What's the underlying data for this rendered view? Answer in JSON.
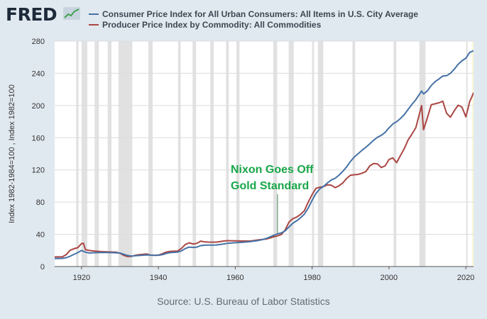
{
  "header": {
    "logo_text": "FRED",
    "logo_icon": "trend-line-icon"
  },
  "legend": [
    {
      "label": "Consumer Price Index for All Urban Consumers: All Items in U.S. City Average",
      "color": "#4572a7"
    },
    {
      "label": "Producer Price Index by Commodity: All Commodities",
      "color": "#aa4643"
    }
  ],
  "source": "Source: U.S. Bureau of Labor Statistics",
  "annotation": {
    "lines": [
      "Nixon Goes Off",
      "Gold Standard"
    ],
    "year": 1971,
    "value": 41,
    "color": "#19a74a"
  },
  "chart_data": {
    "type": "line",
    "title": "",
    "xlabel": "",
    "ylabel": "Index 1982-1984=100 , Index 1982=100",
    "xlim": [
      1913,
      2022
    ],
    "ylim": [
      0,
      280
    ],
    "x_ticks": [
      1920,
      1940,
      1960,
      1980,
      2000,
      2020
    ],
    "y_ticks": [
      0,
      40,
      80,
      120,
      160,
      200,
      240,
      280
    ],
    "recessions": [
      [
        1918.6,
        1919.2
      ],
      [
        1920.0,
        1921.5
      ],
      [
        1923.4,
        1924.5
      ],
      [
        1926.8,
        1927.8
      ],
      [
        1929.6,
        1933.2
      ],
      [
        1937.4,
        1938.5
      ],
      [
        1945.1,
        1945.8
      ],
      [
        1948.9,
        1949.8
      ],
      [
        1953.5,
        1954.4
      ],
      [
        1957.6,
        1958.3
      ],
      [
        1960.3,
        1961.1
      ],
      [
        1969.9,
        1970.9
      ],
      [
        1973.9,
        1975.2
      ],
      [
        1980.0,
        1980.5
      ],
      [
        1981.5,
        1982.9
      ],
      [
        1990.5,
        1991.2
      ],
      [
        2001.2,
        2001.9
      ],
      [
        2007.9,
        2009.5
      ],
      [
        2020.1,
        2020.4
      ]
    ],
    "series": [
      {
        "name": "Consumer Price Index for All Urban Consumers: All Items in U.S. City Average",
        "color": "#4572a7",
        "points": [
          [
            1913,
            9.9
          ],
          [
            1915,
            10.1
          ],
          [
            1916,
            10.9
          ],
          [
            1917,
            12.8
          ],
          [
            1918,
            15.1
          ],
          [
            1919,
            17.3
          ],
          [
            1920,
            20.0
          ],
          [
            1921,
            17.9
          ],
          [
            1922,
            16.8
          ],
          [
            1923,
            17.1
          ],
          [
            1925,
            17.5
          ],
          [
            1927,
            17.4
          ],
          [
            1929,
            17.1
          ],
          [
            1930,
            16.7
          ],
          [
            1931,
            15.2
          ],
          [
            1932,
            13.7
          ],
          [
            1933,
            13.0
          ],
          [
            1934,
            13.4
          ],
          [
            1935,
            13.7
          ],
          [
            1937,
            14.4
          ],
          [
            1938,
            14.1
          ],
          [
            1939,
            13.9
          ],
          [
            1940,
            14.0
          ],
          [
            1941,
            14.7
          ],
          [
            1942,
            16.3
          ],
          [
            1943,
            17.3
          ],
          [
            1945,
            18.0
          ],
          [
            1946,
            19.5
          ],
          [
            1947,
            22.3
          ],
          [
            1948,
            24.1
          ],
          [
            1949,
            23.8
          ],
          [
            1950,
            24.1
          ],
          [
            1951,
            26.0
          ],
          [
            1952,
            26.5
          ],
          [
            1953,
            26.7
          ],
          [
            1955,
            26.8
          ],
          [
            1957,
            28.1
          ],
          [
            1958,
            28.9
          ],
          [
            1960,
            29.6
          ],
          [
            1962,
            30.2
          ],
          [
            1964,
            31.0
          ],
          [
            1966,
            32.4
          ],
          [
            1967,
            33.4
          ],
          [
            1968,
            34.8
          ],
          [
            1969,
            36.7
          ],
          [
            1970,
            38.8
          ],
          [
            1971,
            40.5
          ],
          [
            1972,
            41.8
          ],
          [
            1973,
            44.4
          ],
          [
            1974,
            49.3
          ],
          [
            1975,
            53.8
          ],
          [
            1976,
            56.9
          ],
          [
            1977,
            60.6
          ],
          [
            1978,
            65.2
          ],
          [
            1979,
            72.6
          ],
          [
            1980,
            82.4
          ],
          [
            1981,
            90.9
          ],
          [
            1982,
            96.5
          ],
          [
            1983,
            99.6
          ],
          [
            1984,
            103.9
          ],
          [
            1985,
            107.6
          ],
          [
            1986,
            109.6
          ],
          [
            1987,
            113.6
          ],
          [
            1988,
            118.3
          ],
          [
            1989,
            124.0
          ],
          [
            1990,
            130.7
          ],
          [
            1991,
            136.2
          ],
          [
            1992,
            140.3
          ],
          [
            1993,
            144.5
          ],
          [
            1994,
            148.2
          ],
          [
            1995,
            152.4
          ],
          [
            1996,
            156.9
          ],
          [
            1997,
            160.5
          ],
          [
            1998,
            163.0
          ],
          [
            1999,
            166.6
          ],
          [
            2000,
            172.2
          ],
          [
            2001,
            177.1
          ],
          [
            2002,
            179.9
          ],
          [
            2003,
            184.0
          ],
          [
            2004,
            188.9
          ],
          [
            2005,
            195.3
          ],
          [
            2006,
            201.6
          ],
          [
            2007,
            207.3
          ],
          [
            2008.5,
            218.0
          ],
          [
            2009,
            214.5
          ],
          [
            2010,
            218.1
          ],
          [
            2011,
            224.9
          ],
          [
            2012,
            229.6
          ],
          [
            2013,
            233.0
          ],
          [
            2014,
            236.7
          ],
          [
            2015,
            237.0
          ],
          [
            2016,
            240.0
          ],
          [
            2017,
            245.1
          ],
          [
            2018,
            251.1
          ],
          [
            2019,
            255.7
          ],
          [
            2020,
            258.8
          ],
          [
            2021,
            266.0
          ],
          [
            2022,
            268.0
          ]
        ]
      },
      {
        "name": "Producer Price Index by Commodity: All Commodities",
        "color": "#aa4643",
        "points": [
          [
            1913,
            12.0
          ],
          [
            1915,
            12.0
          ],
          [
            1916,
            14.7
          ],
          [
            1917,
            20.2
          ],
          [
            1918,
            22.1
          ],
          [
            1919,
            23.4
          ],
          [
            1920,
            28.5
          ],
          [
            1920.5,
            29.0
          ],
          [
            1921,
            21.0
          ],
          [
            1922,
            20.0
          ],
          [
            1923,
            19.4
          ],
          [
            1925,
            18.6
          ],
          [
            1927,
            18.1
          ],
          [
            1929,
            17.9
          ],
          [
            1930,
            16.5
          ],
          [
            1931,
            13.8
          ],
          [
            1932,
            12.4
          ],
          [
            1933,
            12.6
          ],
          [
            1934,
            14.0
          ],
          [
            1935,
            14.7
          ],
          [
            1937,
            15.6
          ],
          [
            1938,
            14.2
          ],
          [
            1939,
            14.0
          ],
          [
            1940,
            14.2
          ],
          [
            1941,
            15.9
          ],
          [
            1942,
            17.9
          ],
          [
            1943,
            18.8
          ],
          [
            1945,
            19.3
          ],
          [
            1946,
            22.5
          ],
          [
            1947,
            27.4
          ],
          [
            1948,
            29.5
          ],
          [
            1949,
            28.0
          ],
          [
            1950,
            28.8
          ],
          [
            1951,
            31.6
          ],
          [
            1952,
            30.6
          ],
          [
            1953,
            30.4
          ],
          [
            1955,
            30.3
          ],
          [
            1957,
            31.7
          ],
          [
            1958,
            32.1
          ],
          [
            1960,
            31.9
          ],
          [
            1962,
            31.7
          ],
          [
            1964,
            31.7
          ],
          [
            1966,
            33.1
          ],
          [
            1968,
            34.1
          ],
          [
            1969,
            35.4
          ],
          [
            1970,
            36.9
          ],
          [
            1971,
            38.1
          ],
          [
            1972,
            39.8
          ],
          [
            1973,
            45.6
          ],
          [
            1974,
            55.4
          ],
          [
            1975,
            59.5
          ],
          [
            1976,
            61.5
          ],
          [
            1977,
            64.8
          ],
          [
            1978,
            69.4
          ],
          [
            1979,
            80.0
          ],
          [
            1980,
            89.5
          ],
          [
            1981,
            97.1
          ],
          [
            1982,
            98.5
          ],
          [
            1983,
            99.4
          ],
          [
            1984,
            101.5
          ],
          [
            1985,
            101.0
          ],
          [
            1986,
            98.0
          ],
          [
            1987,
            100.3
          ],
          [
            1988,
            104.0
          ],
          [
            1989,
            109.5
          ],
          [
            1990,
            113.5
          ],
          [
            1991,
            114.0
          ],
          [
            1992,
            114.5
          ],
          [
            1993,
            116.0
          ],
          [
            1994,
            118.0
          ],
          [
            1995,
            125.0
          ],
          [
            1996,
            128.0
          ],
          [
            1997,
            127.5
          ],
          [
            1998,
            123.0
          ],
          [
            1999,
            125.0
          ],
          [
            2000,
            133.0
          ],
          [
            2001,
            135.0
          ],
          [
            2002,
            129.0
          ],
          [
            2003,
            138.1
          ],
          [
            2004,
            146.7
          ],
          [
            2005,
            157.4
          ],
          [
            2006,
            164.7
          ],
          [
            2007,
            172.6
          ],
          [
            2008.5,
            200.0
          ],
          [
            2009,
            170.0
          ],
          [
            2010,
            184.7
          ],
          [
            2011,
            201.0
          ],
          [
            2012,
            202.2
          ],
          [
            2013,
            203.4
          ],
          [
            2014,
            205.3
          ],
          [
            2015,
            190.4
          ],
          [
            2016,
            185.5
          ],
          [
            2017,
            193.5
          ],
          [
            2018,
            200.4
          ],
          [
            2019,
            198.0
          ],
          [
            2020,
            186.0
          ],
          [
            2020.5,
            195.0
          ],
          [
            2021,
            205.0
          ],
          [
            2021.5,
            210.0
          ],
          [
            2022,
            216.0
          ]
        ]
      }
    ]
  }
}
